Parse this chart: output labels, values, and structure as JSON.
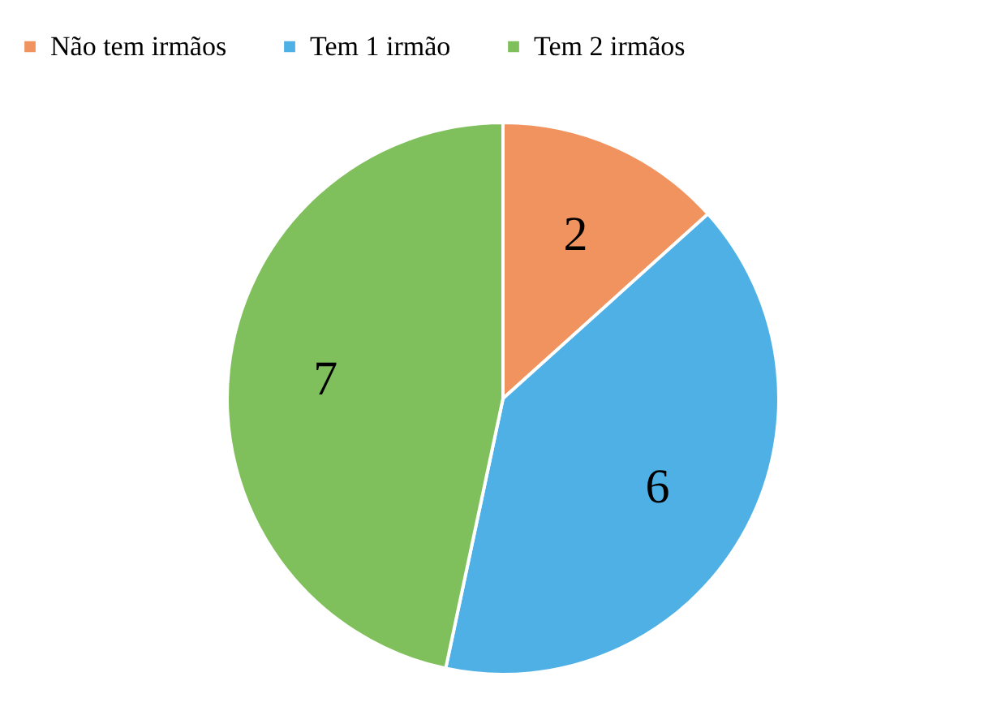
{
  "chart_data": {
    "type": "pie",
    "categories": [
      "Não tem irmãos",
      "Tem 1 irmão",
      "Tem 2 irmãos"
    ],
    "values": [
      2,
      6,
      7
    ],
    "colors": [
      "#f0935e",
      "#4fb0e6",
      "#80c05c"
    ],
    "data_labels": true,
    "legend": "top"
  }
}
